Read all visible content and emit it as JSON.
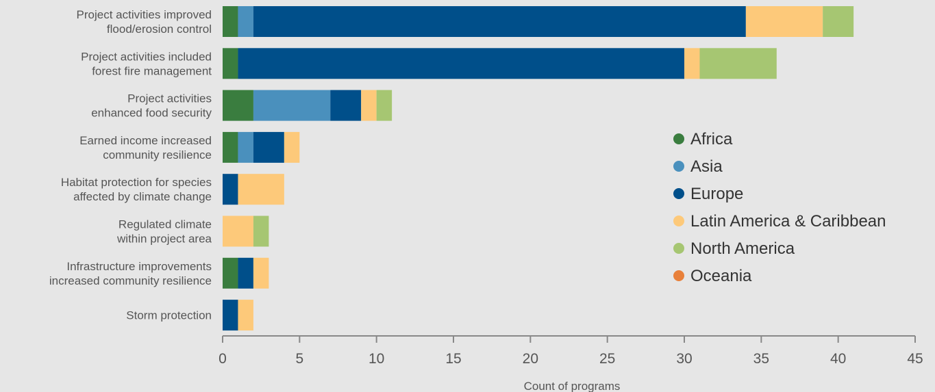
{
  "chart_data": {
    "type": "bar",
    "orientation": "horizontal",
    "stacked": true,
    "categories": [
      [
        "Project activities improved",
        "flood/erosion control"
      ],
      [
        "Project activities included",
        "forest fire management"
      ],
      [
        "Project activities",
        "enhanced food security"
      ],
      [
        "Earned income increased",
        "community resilience"
      ],
      [
        "Habitat protection for species",
        "affected by climate change"
      ],
      [
        "Regulated climate",
        "within project area"
      ],
      [
        "Infrastructure improvements",
        "increased community resilience"
      ],
      [
        "Storm protection"
      ]
    ],
    "series": [
      {
        "name": "Africa",
        "color": "#3a7d3f",
        "values": [
          1,
          1,
          2,
          1,
          0,
          0,
          1,
          0
        ]
      },
      {
        "name": "Asia",
        "color": "#4a90bd",
        "values": [
          1,
          0,
          5,
          1,
          0,
          0,
          0,
          0
        ]
      },
      {
        "name": "Europe",
        "color": "#004f8a",
        "values": [
          32,
          29,
          2,
          2,
          1,
          0,
          1,
          1
        ]
      },
      {
        "name": "Latin America & Caribbean",
        "color": "#fdc97a",
        "values": [
          5,
          1,
          1,
          1,
          3,
          2,
          1,
          1
        ]
      },
      {
        "name": "North America",
        "color": "#a6c672",
        "values": [
          2,
          5,
          1,
          0,
          0,
          1,
          0,
          0
        ]
      },
      {
        "name": "Oceania",
        "color": "#e8803a",
        "values": [
          0,
          0,
          0,
          0,
          0,
          0,
          0,
          0
        ]
      }
    ],
    "xlabel": "Count of programs",
    "xlim": [
      0,
      45
    ],
    "xticks": [
      0,
      5,
      10,
      15,
      20,
      25,
      30,
      35,
      40,
      45
    ],
    "grid": false,
    "legend_position": "right"
  }
}
